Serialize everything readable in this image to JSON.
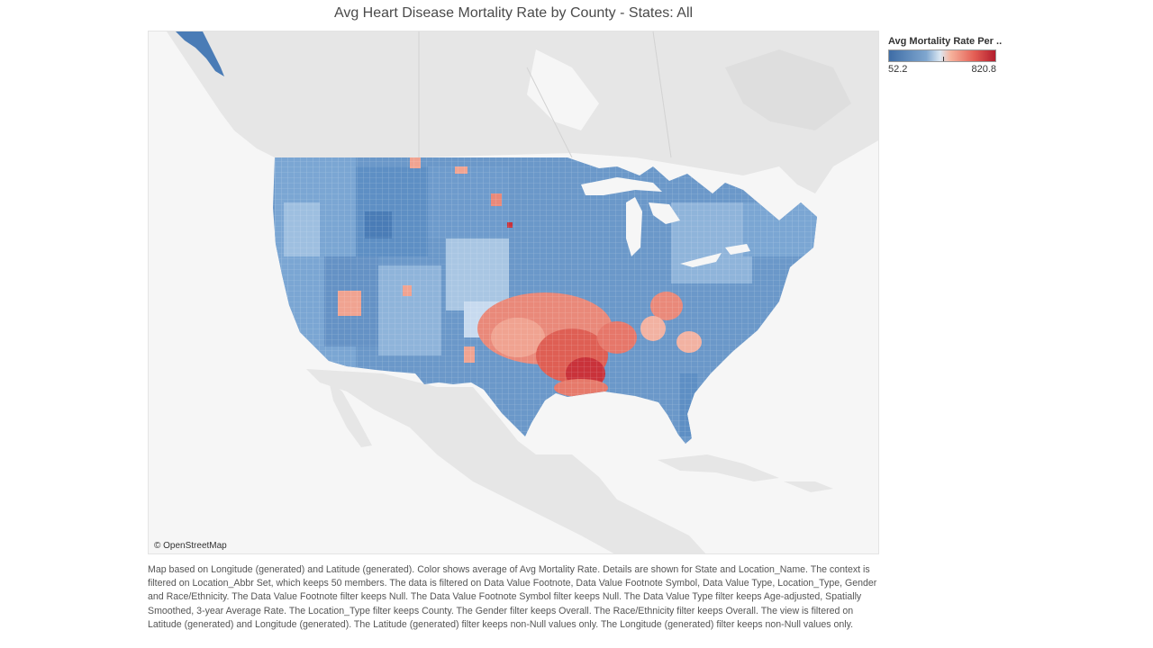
{
  "title": "Avg Heart Disease Mortality Rate by County - States: All",
  "legend": {
    "title": "Avg Mortality Rate Per ..",
    "min_label": "52.2",
    "max_label": "820.8",
    "colors": {
      "low": "#3e6da6",
      "mid": "#dbe7f2",
      "high": "#b31d2d"
    }
  },
  "map": {
    "attribution": "© OpenStreetMap",
    "region": "United States counties",
    "basemap_land_color": "#e6e6e6",
    "basemap_water_color": "#f6f6f6"
  },
  "caption": "Map based on Longitude (generated) and Latitude (generated).  Color shows average of Avg Mortality Rate.  Details are shown for State and Location_Name.  The context is filtered on Location_Abbr Set, which keeps 50 members. The data is filtered on Data Value Footnote, Data Value Footnote Symbol, Data Value Type, Location_Type, Gender and Race/Ethnicity. The Data Value Footnote filter keeps Null. The Data Value Footnote Symbol filter keeps Null. The Data Value Type filter keeps Age-adjusted, Spatially Smoothed, 3-year Average Rate. The Location_Type filter keeps County. The Gender filter keeps Overall. The Race/Ethnicity filter keeps Overall. The view is filtered on Latitude (generated) and Longitude (generated). The Latitude (generated) filter keeps non-Null values only. The Longitude (generated) filter keeps non-Null values only."
}
